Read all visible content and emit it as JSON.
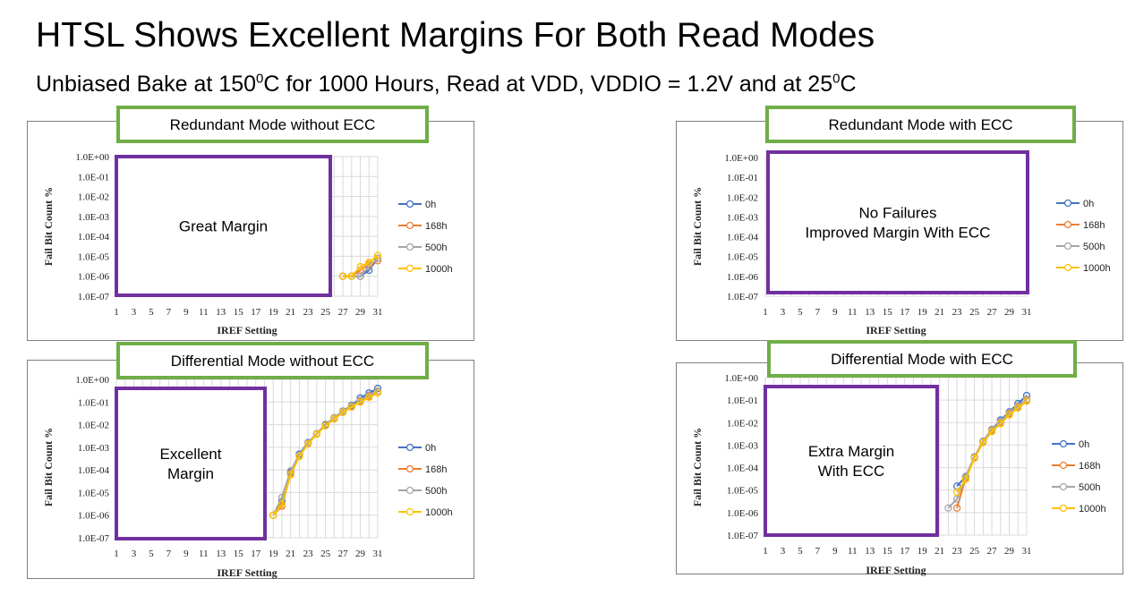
{
  "slide": {
    "title": "HTSL Shows Excellent Margins For Both Read Modes",
    "subtitle": {
      "part1": "Unbiased Bake at 150",
      "sup1": "0",
      "part2": "C for 1000 Hours, Read at VDD, VDDIO = 1.2V and at 25",
      "sup2": "0",
      "part3": "C"
    }
  },
  "colors": {
    "series": [
      "#4472C4",
      "#ED7D31",
      "#A5A5A5",
      "#FFC000"
    ],
    "banner_border": "#70AD47",
    "callout_border": "#7030A0",
    "grid": "#D9D9D9"
  },
  "chart_data": [
    {
      "type": "line",
      "banner": "Redundant Mode without ECC",
      "callout": [
        "Great Margin"
      ],
      "xlabel": "IREF Setting",
      "ylabel": "Fail Bit Count %",
      "y_scale": "log",
      "ylim": [
        "1.0E-07",
        "1.0E+00"
      ],
      "xlim": [
        1,
        31
      ],
      "yticks": [
        "1.0E+00",
        "1.0E-01",
        "1.0E-02",
        "1.0E-03",
        "1.0E-04",
        "1.0E-05",
        "1.0E-06",
        "1.0E-07"
      ],
      "xticks": [
        "1",
        "3",
        "5",
        "7",
        "9",
        "11",
        "13",
        "15",
        "17",
        "19",
        "21",
        "23",
        "25",
        "27",
        "29",
        "31"
      ],
      "grid": true,
      "legend_position": "right",
      "series": [
        {
          "name": "0h",
          "x": [
            27,
            28,
            29,
            30,
            31
          ],
          "y": [
            "1.0E-06",
            "1.0E-06",
            "1.0E-06",
            "2.0E-06",
            "8.0E-06"
          ]
        },
        {
          "name": "168h",
          "x": [
            27,
            28,
            29,
            30,
            31
          ],
          "y": [
            "1.0E-06",
            "1.0E-06",
            "2.0E-06",
            "4.0E-06",
            "6.0E-06"
          ]
        },
        {
          "name": "500h",
          "x": [
            27,
            28,
            29,
            30,
            31
          ],
          "y": [
            "1.0E-06",
            "1.0E-06",
            "1.0E-06",
            "3.0E-06",
            "8.0E-06"
          ]
        },
        {
          "name": "1000h",
          "x": [
            27,
            28,
            29,
            30,
            31
          ],
          "y": [
            "1.0E-06",
            "1.0E-06",
            "3.0E-06",
            "5.0E-06",
            "1.1E-05"
          ]
        }
      ]
    },
    {
      "type": "line",
      "banner": "Redundant Mode with ECC",
      "callout": [
        "No Failures",
        "Improved Margin With ECC"
      ],
      "xlabel": "IREF Setting",
      "ylabel": "Fail Bit Count %",
      "y_scale": "log",
      "ylim": [
        "1.0E-07",
        "1.0E+00"
      ],
      "xlim": [
        1,
        31
      ],
      "yticks": [
        "1.0E+00",
        "1.0E-01",
        "1.0E-02",
        "1.0E-03",
        "1.0E-04",
        "1.0E-05",
        "1.0E-06",
        "1.0E-07"
      ],
      "xticks": [
        "1",
        "3",
        "5",
        "7",
        "9",
        "11",
        "13",
        "15",
        "17",
        "19",
        "21",
        "23",
        "25",
        "27",
        "29",
        "31"
      ],
      "grid": true,
      "legend_position": "right",
      "series": [
        {
          "name": "0h",
          "x": [],
          "y": []
        },
        {
          "name": "168h",
          "x": [],
          "y": []
        },
        {
          "name": "500h",
          "x": [],
          "y": []
        },
        {
          "name": "1000h",
          "x": [],
          "y": []
        }
      ]
    },
    {
      "type": "line",
      "banner": "Differential Mode without ECC",
      "callout": [
        "Excellent",
        "Margin"
      ],
      "xlabel": "IREF Setting",
      "ylabel": "Fail Bit Count %",
      "y_scale": "log",
      "ylim": [
        "1.0E-07",
        "1.0E+00"
      ],
      "xlim": [
        1,
        31
      ],
      "yticks": [
        "1.0E+00",
        "1.0E-01",
        "1.0E-02",
        "1.0E-03",
        "1.0E-04",
        "1.0E-05",
        "1.0E-06",
        "1.0E-07"
      ],
      "xticks": [
        "1",
        "3",
        "5",
        "7",
        "9",
        "11",
        "13",
        "15",
        "17",
        "19",
        "21",
        "23",
        "25",
        "27",
        "29",
        "31"
      ],
      "grid": true,
      "legend_position": "right",
      "series": [
        {
          "name": "0h",
          "x": [
            19,
            20,
            21,
            22,
            23,
            24,
            25,
            26,
            27,
            28,
            29,
            30,
            31
          ],
          "y": [
            "1.0E-06",
            "4.0E-06",
            "8.0E-05",
            "5.0E-04",
            "1.6E-03",
            "4.0E-03",
            "1.0E-02",
            "2.0E-02",
            "4.0E-02",
            "7.0E-02",
            "1.5E-01",
            "2.5E-01",
            "4.0E-01"
          ]
        },
        {
          "name": "168h",
          "x": [
            19,
            20,
            21,
            22,
            23,
            24,
            25,
            26,
            27,
            28,
            29,
            30,
            31
          ],
          "y": [
            "1.0E-06",
            "2.5E-06",
            "7.0E-05",
            "4.0E-04",
            "1.5E-03",
            "4.0E-03",
            "9.0E-03",
            "1.8E-02",
            "3.5E-02",
            "6.0E-02",
            "1.1E-01",
            "1.8E-01",
            "3.0E-01"
          ]
        },
        {
          "name": "500h",
          "x": [
            19,
            20,
            21,
            22,
            23,
            24,
            25,
            26,
            27,
            28,
            29,
            30,
            31
          ],
          "y": [
            "1.0E-06",
            "6.0E-06",
            "9.0E-05",
            "4.5E-04",
            "1.5E-03",
            "4.0E-03",
            "9.0E-03",
            "2.0E-02",
            "4.0E-02",
            "6.5E-02",
            "1.2E-01",
            "2.0E-01",
            "3.0E-01"
          ]
        },
        {
          "name": "1000h",
          "x": [
            19,
            20,
            21,
            22,
            23,
            24,
            25,
            26,
            27,
            28,
            29,
            30,
            31
          ],
          "y": [
            "1.0E-06",
            "3.0E-06",
            "6.0E-05",
            "4.0E-04",
            "1.4E-03",
            "3.8E-03",
            "9.0E-03",
            "1.8E-02",
            "3.5E-02",
            "6.0E-02",
            "1.0E-01",
            "1.6E-01",
            "2.5E-01"
          ]
        }
      ]
    },
    {
      "type": "line",
      "banner": "Differential Mode with ECC",
      "callout": [
        "Extra Margin",
        "With ECC"
      ],
      "xlabel": "IREF Setting",
      "ylabel": "Fail Bit Count %",
      "y_scale": "log",
      "ylim": [
        "1.0E-07",
        "1.0E+00"
      ],
      "xlim": [
        1,
        31
      ],
      "yticks": [
        "1.0E+00",
        "1.0E-01",
        "1.0E-02",
        "1.0E-03",
        "1.0E-04",
        "1.0E-05",
        "1.0E-06",
        "1.0E-07"
      ],
      "xticks": [
        "1",
        "3",
        "5",
        "7",
        "9",
        "11",
        "13",
        "15",
        "17",
        "19",
        "21",
        "23",
        "25",
        "27",
        "29",
        "31"
      ],
      "grid": true,
      "legend_position": "right",
      "series": [
        {
          "name": "0h",
          "x": [
            23,
            24,
            25,
            26,
            27,
            28,
            29,
            30,
            31
          ],
          "y": [
            "1.5E-05",
            "4.0E-05",
            "3.0E-04",
            "1.5E-03",
            "5.0E-03",
            "1.3E-02",
            "3.0E-02",
            "7.0E-02",
            "1.6E-01"
          ]
        },
        {
          "name": "168h",
          "x": [
            23,
            24,
            25,
            26,
            27,
            28,
            29,
            30,
            31
          ],
          "y": [
            "1.6E-06",
            "3.5E-05",
            "2.8E-04",
            "1.4E-03",
            "4.5E-03",
            "1.0E-02",
            "2.5E-02",
            "5.0E-02",
            "1.0E-01"
          ]
        },
        {
          "name": "500h",
          "x": [
            22,
            23,
            24,
            25,
            26,
            27,
            28,
            29,
            30,
            31
          ],
          "y": [
            "1.6E-06",
            "4.0E-06",
            "3.8E-05",
            "3.0E-04",
            "1.5E-03",
            "5.0E-03",
            "1.1E-02",
            "2.8E-02",
            "5.5E-02",
            "1.1E-01"
          ]
        },
        {
          "name": "1000h",
          "x": [
            23,
            24,
            25,
            26,
            27,
            28,
            29,
            30,
            31
          ],
          "y": [
            "8.0E-06",
            "3.0E-05",
            "2.6E-04",
            "1.3E-03",
            "4.0E-03",
            "9.0E-03",
            "2.2E-02",
            "4.5E-02",
            "9.0E-02"
          ]
        }
      ]
    }
  ]
}
